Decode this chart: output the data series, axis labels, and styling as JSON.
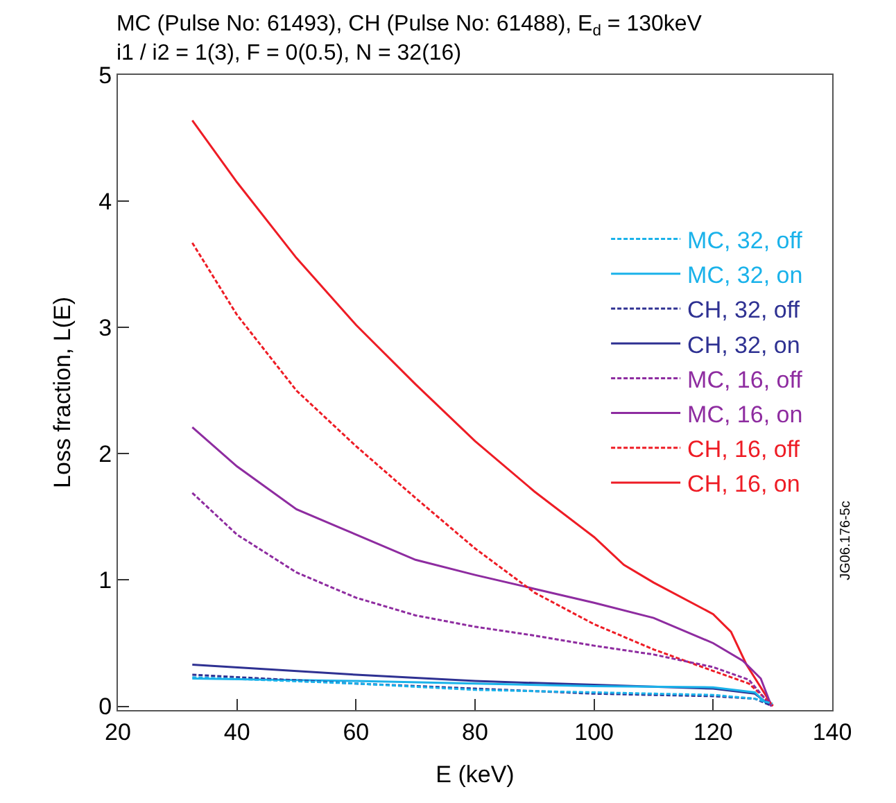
{
  "chart_data": {
    "type": "line",
    "title": "MC (Pulse No: 61493), CH (Pulse No: 61488), E$_{d}$ = 130keV\ni1 / i2 = 1(3), F = 0(0.5), N = 32(16)",
    "xlabel": "E (keV)",
    "ylabel": "Loss fraction, L(E)",
    "xlim": [
      20,
      140
    ],
    "ylim": [
      -0.03,
      5
    ],
    "xticks": [
      20,
      40,
      60,
      80,
      100,
      120,
      140
    ],
    "yticks": [
      0,
      1,
      2,
      3,
      4,
      5
    ],
    "legend": "right",
    "marker": "none",
    "annotations": [
      "JG06.176-5c"
    ],
    "series": [
      {
        "name": "MC, 32, off",
        "color": "#1ab2ea",
        "line_style": "dashed",
        "x": [
          32.5,
          60,
          80,
          100,
          120,
          127,
          130
        ],
        "values": [
          0.23,
          0.18,
          0.13,
          0.11,
          0.09,
          0.06,
          0.02
        ]
      },
      {
        "name": "MC, 32, on",
        "color": "#1ab2ea",
        "line_style": "solid",
        "x": [
          32.5,
          60,
          80,
          100,
          120,
          127,
          129
        ],
        "values": [
          0.22,
          0.2,
          0.18,
          0.16,
          0.15,
          0.11,
          0.02
        ]
      },
      {
        "name": "CH, 32, off",
        "color": "#2e3192",
        "line_style": "dashed",
        "x": [
          32.5,
          60,
          80,
          100,
          120,
          127,
          129.5
        ],
        "values": [
          0.25,
          0.18,
          0.14,
          0.1,
          0.08,
          0.06,
          0.01
        ]
      },
      {
        "name": "CH, 32, on",
        "color": "#2e3192",
        "line_style": "solid",
        "x": [
          32.5,
          60,
          80,
          100,
          120,
          127,
          129.5
        ],
        "values": [
          0.33,
          0.25,
          0.2,
          0.17,
          0.14,
          0.1,
          0.01
        ]
      },
      {
        "name": "MC, 16, off",
        "color": "#8e2ca0",
        "line_style": "dashed",
        "x": [
          32.5,
          40,
          50,
          60,
          70,
          80,
          90,
          100,
          110,
          120,
          126,
          129.8
        ],
        "values": [
          1.69,
          1.36,
          1.06,
          0.86,
          0.72,
          0.63,
          0.56,
          0.48,
          0.41,
          0.31,
          0.21,
          0
        ]
      },
      {
        "name": "MC, 16, on",
        "color": "#8e2ca0",
        "line_style": "solid",
        "x": [
          32.5,
          40,
          50,
          60,
          70,
          80,
          90,
          100,
          110,
          120,
          125,
          128,
          129.8
        ],
        "values": [
          2.21,
          1.9,
          1.56,
          1.36,
          1.16,
          1.04,
          0.93,
          0.82,
          0.7,
          0.5,
          0.36,
          0.22,
          0
        ]
      },
      {
        "name": "CH, 16, off",
        "color": "#ee1c25",
        "line_style": "dashed",
        "x": [
          32.5,
          40,
          50,
          60,
          70,
          80,
          90,
          100,
          110,
          120,
          126,
          130.2
        ],
        "values": [
          3.67,
          3.1,
          2.5,
          2.06,
          1.65,
          1.25,
          0.9,
          0.65,
          0.45,
          0.28,
          0.18,
          0
        ]
      },
      {
        "name": "CH, 16, on",
        "color": "#ee1c25",
        "line_style": "solid",
        "x": [
          32.5,
          40,
          50,
          60,
          70,
          80,
          90,
          100,
          105,
          110,
          120,
          123,
          125.6,
          130
        ],
        "values": [
          4.64,
          4.15,
          3.55,
          3.02,
          2.55,
          2.1,
          1.7,
          1.34,
          1.12,
          0.98,
          0.73,
          0.59,
          0.33,
          0
        ]
      }
    ]
  }
}
